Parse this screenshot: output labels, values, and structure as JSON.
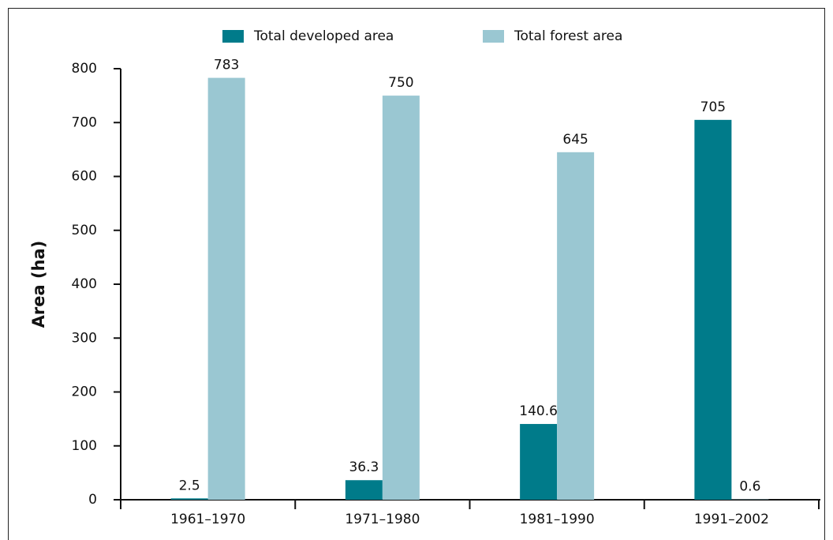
{
  "chart_data": {
    "type": "bar",
    "y_label": "Area (ha)",
    "categories": [
      "1961–1970",
      "1971–1980",
      "1981–1990",
      "1991–2002"
    ],
    "series": [
      {
        "name": "Total developed area",
        "color": "#007b8a",
        "values": [
          2.5,
          36.3,
          140.6,
          705
        ]
      },
      {
        "name": "Total forest area",
        "color": "#9ac7d2",
        "values": [
          783,
          750,
          645,
          0.6
        ]
      }
    ],
    "ylim": [
      0,
      800
    ],
    "yticks": [
      0,
      100,
      200,
      300,
      400,
      500,
      600,
      700,
      800
    ],
    "grid": false,
    "legend": "top"
  }
}
